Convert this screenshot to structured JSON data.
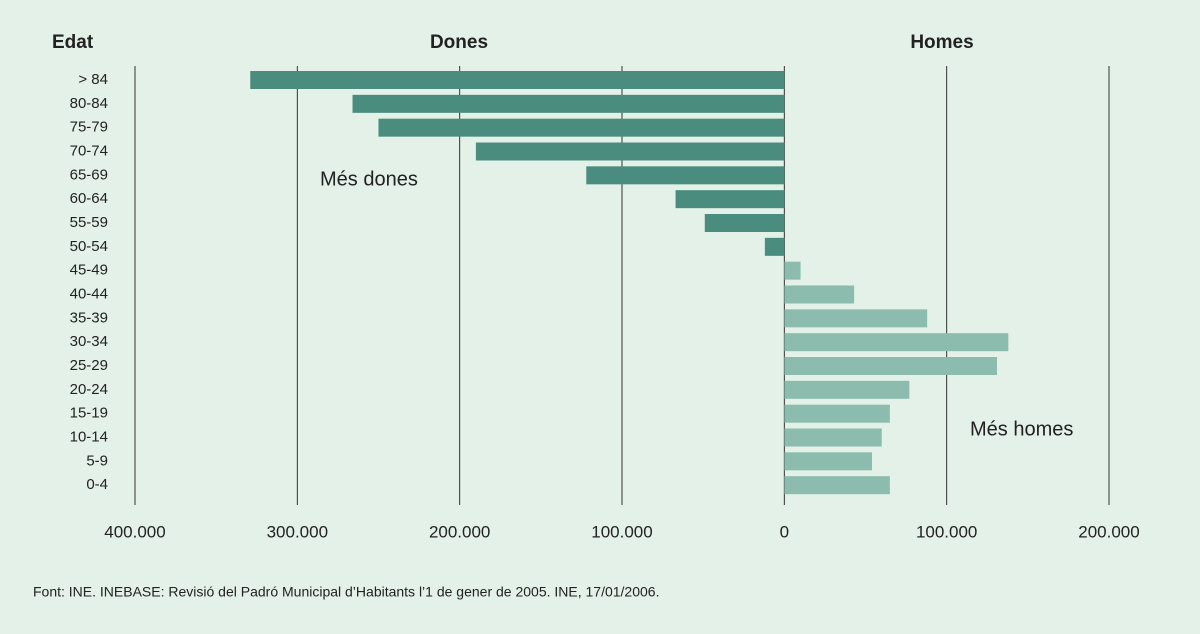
{
  "chart_data": {
    "type": "bar",
    "orientation": "horizontal",
    "y_label": "Edat",
    "side_labels": [
      "Dones",
      "Homes"
    ],
    "annotations": [
      "Més dones",
      "Més homes"
    ],
    "source": "Font: INE. INEBASE: Revisió del Padró Municipal d’Habitants l’1 de gener de 2005. INE, 17/01/2006.",
    "categories": [
      "> 84",
      "80-84",
      "75-79",
      "70-74",
      "65-69",
      "60-64",
      "55-59",
      "50-54",
      "45-49",
      "40-44",
      "35-39",
      "30-34",
      "25-29",
      "20-24",
      "15-19",
      "10-14",
      "5-9",
      "0-4"
    ],
    "values": [
      -329000,
      -266000,
      -250000,
      -190000,
      -122000,
      -67000,
      -49000,
      -12000,
      10000,
      43000,
      88000,
      138000,
      131000,
      77000,
      65000,
      60000,
      54000,
      65000
    ],
    "color_negative": "#4a8c7e",
    "color_positive": "#8bbcae",
    "xlim": [
      -400000,
      200000
    ],
    "xticks": [
      {
        "value": -400000,
        "label": "400.000"
      },
      {
        "value": -300000,
        "label": "300.000"
      },
      {
        "value": -200000,
        "label": "200.000"
      },
      {
        "value": -100000,
        "label": "100.000"
      },
      0,
      {
        "value": 100000,
        "label": "100.000"
      },
      {
        "value": 200000,
        "label": "200.000"
      }
    ],
    "grid": true
  }
}
